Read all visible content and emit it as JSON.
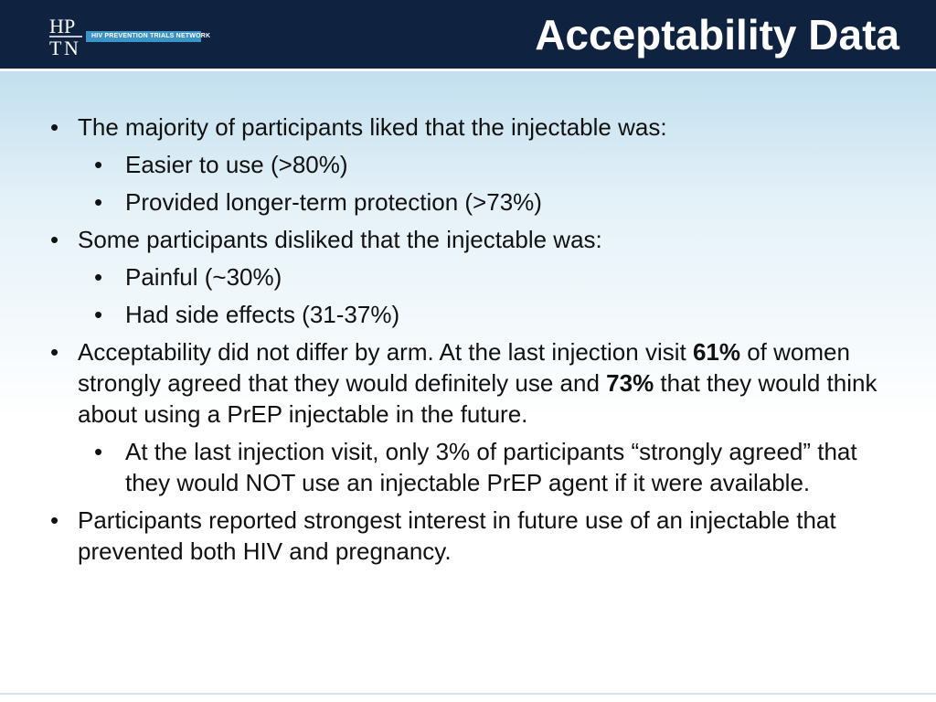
{
  "header": {
    "title": "Acceptability Data",
    "logo_banner": "HIV PREVENTION TRIALS NETWORK",
    "logo_letters": [
      "H",
      "P",
      "T",
      "N"
    ]
  },
  "bullets": {
    "b1": "The majority of participants liked that the injectable was:",
    "b1_1": "Easier to use (>80%)",
    "b1_2": "Provided longer-term protection (>73%)",
    "b2": "Some participants disliked that the injectable was:",
    "b2_1": "Painful (~30%)",
    "b2_2": "Had side effects (31-37%)",
    "b3_part1": "Acceptability did not differ by arm. At the last injection visit ",
    "b3_bold1": "61%",
    "b3_part2": " of women strongly agreed that they would definitely use and ",
    "b3_bold2": "73%",
    "b3_part3": " that they would think about using a PrEP injectable in the future.",
    "b3_1": "At the last injection visit, only 3% of participants “strongly agreed” that they would NOT use an injectable PrEP agent if it were available.",
    "b4": "Participants reported strongest interest in future use of an injectable that prevented both HIV and pregnancy."
  },
  "colors": {
    "header_bg": "#0f2340",
    "logo_banner": "#3c93c6",
    "gradient_top": "#c2dfee"
  },
  "icons": {
    "bullet": "•"
  }
}
